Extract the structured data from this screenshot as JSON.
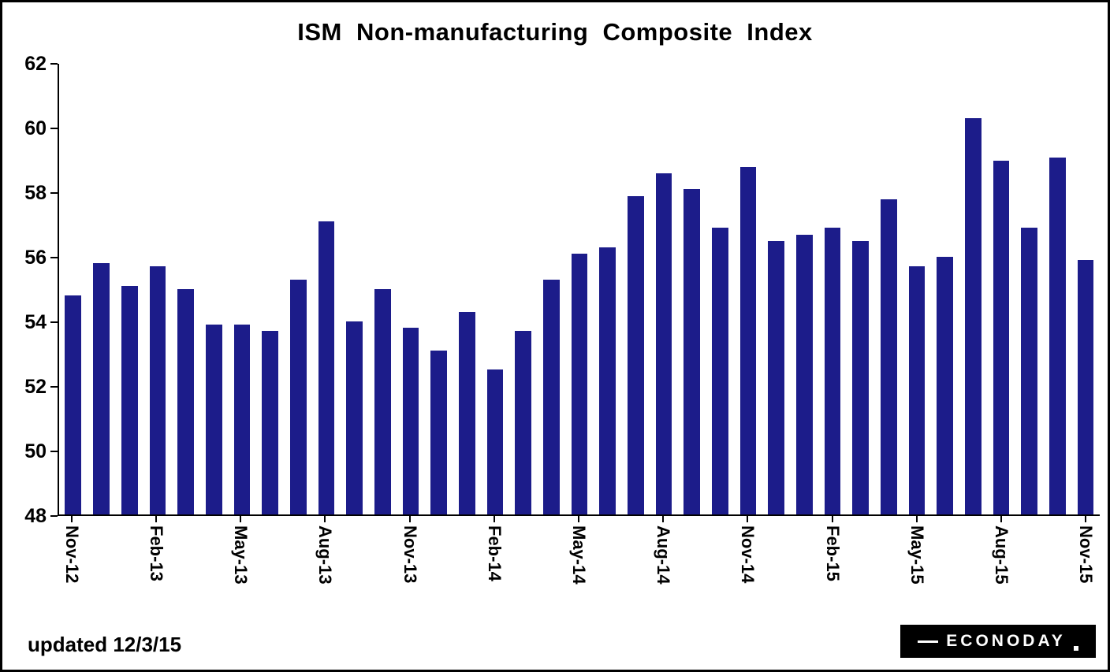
{
  "title": "ISM Non-manufacturing Composite Index",
  "footer": {
    "updated": "updated 12/3/15"
  },
  "logo": {
    "text": "ECONODAY"
  },
  "colors": {
    "bar": "#1c1c8a",
    "axis": "#000000",
    "background": "#ffffff"
  },
  "chart_data": {
    "type": "bar",
    "title": "ISM Non-manufacturing Composite Index",
    "categories": [
      "Nov-12",
      "Dec-12",
      "Jan-13",
      "Feb-13",
      "Mar-13",
      "Apr-13",
      "May-13",
      "Jun-13",
      "Jul-13",
      "Aug-13",
      "Sep-13",
      "Oct-13",
      "Nov-13",
      "Dec-13",
      "Jan-14",
      "Feb-14",
      "Mar-14",
      "Apr-14",
      "May-14",
      "Jun-14",
      "Jul-14",
      "Aug-14",
      "Sep-14",
      "Oct-14",
      "Nov-14",
      "Dec-14",
      "Jan-15",
      "Feb-15",
      "Mar-15",
      "Apr-15",
      "May-15",
      "Jun-15",
      "Jul-15",
      "Aug-15",
      "Sep-15",
      "Oct-15",
      "Nov-15"
    ],
    "values": [
      54.8,
      55.8,
      55.1,
      55.7,
      55.0,
      53.9,
      53.9,
      53.7,
      55.3,
      57.1,
      54.0,
      55.0,
      53.8,
      53.1,
      54.3,
      52.5,
      53.7,
      55.3,
      56.1,
      56.3,
      57.9,
      58.6,
      58.1,
      56.9,
      58.8,
      56.5,
      56.7,
      56.9,
      56.5,
      57.8,
      55.7,
      56.0,
      60.3,
      59.0,
      56.9,
      59.1,
      55.9
    ],
    "xtick_labels": [
      "Nov-12",
      "Feb-13",
      "May-13",
      "Aug-13",
      "Nov-13",
      "Feb-14",
      "May-14",
      "Aug-14",
      "Nov-14",
      "Feb-15",
      "May-15",
      "Aug-15",
      "Nov-15"
    ],
    "xtick_every": 3,
    "xlabel": "",
    "ylabel": "",
    "ylim": [
      48,
      62
    ],
    "yticks": [
      48,
      50,
      52,
      54,
      56,
      58,
      60,
      62
    ],
    "grid": false,
    "legend": null,
    "bar_color": "#1c1c8a"
  }
}
